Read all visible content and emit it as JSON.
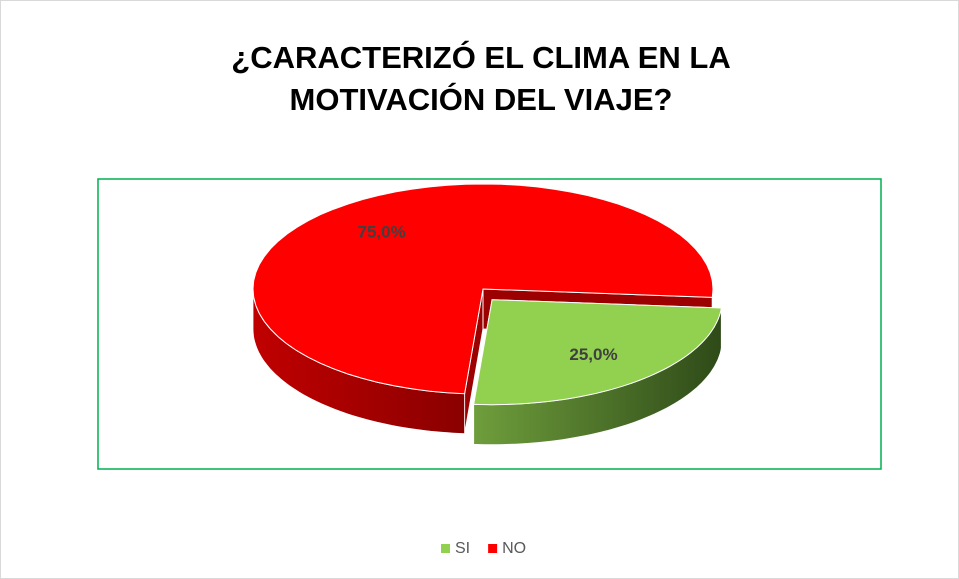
{
  "chart_data": {
    "type": "pie",
    "title": "¿CARACTERIZÓ EL CLIMA EN LA MOTIVACIÓN DEL VIAJE?",
    "categories": [
      "SI",
      "NO"
    ],
    "values": [
      25,
      75
    ],
    "value_labels": [
      "25,0%",
      "75,0%"
    ],
    "colors": [
      "#92d050",
      "#ff0000"
    ],
    "legend": "bottom"
  }
}
